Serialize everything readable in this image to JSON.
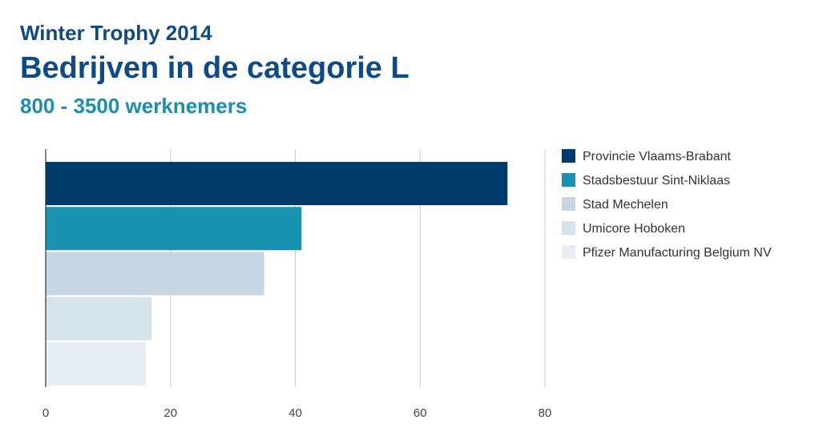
{
  "header": {
    "event": "Winter Trophy 2014",
    "title": "Bedrijven in de categorie L",
    "subtitle": "800 - 3500 werknemers"
  },
  "chart_data": {
    "type": "bar",
    "orientation": "horizontal",
    "categories": [
      "Provincie Vlaams-Brabant",
      "Stadsbestuur Sint-Niklaas",
      "Stad Mechelen",
      "Umicore Hoboken",
      "Pfizer Manufacturing Belgium NV"
    ],
    "values": [
      74,
      41,
      35,
      17,
      16
    ],
    "colors": [
      "#003b6c",
      "#1a93b1",
      "#c4d6e4",
      "#d5e3ea",
      "#e6edf4"
    ],
    "xlim": [
      0,
      80
    ],
    "xticks": [
      "0",
      "20",
      "40",
      "60",
      "80"
    ],
    "grid": true,
    "legend": "right"
  }
}
